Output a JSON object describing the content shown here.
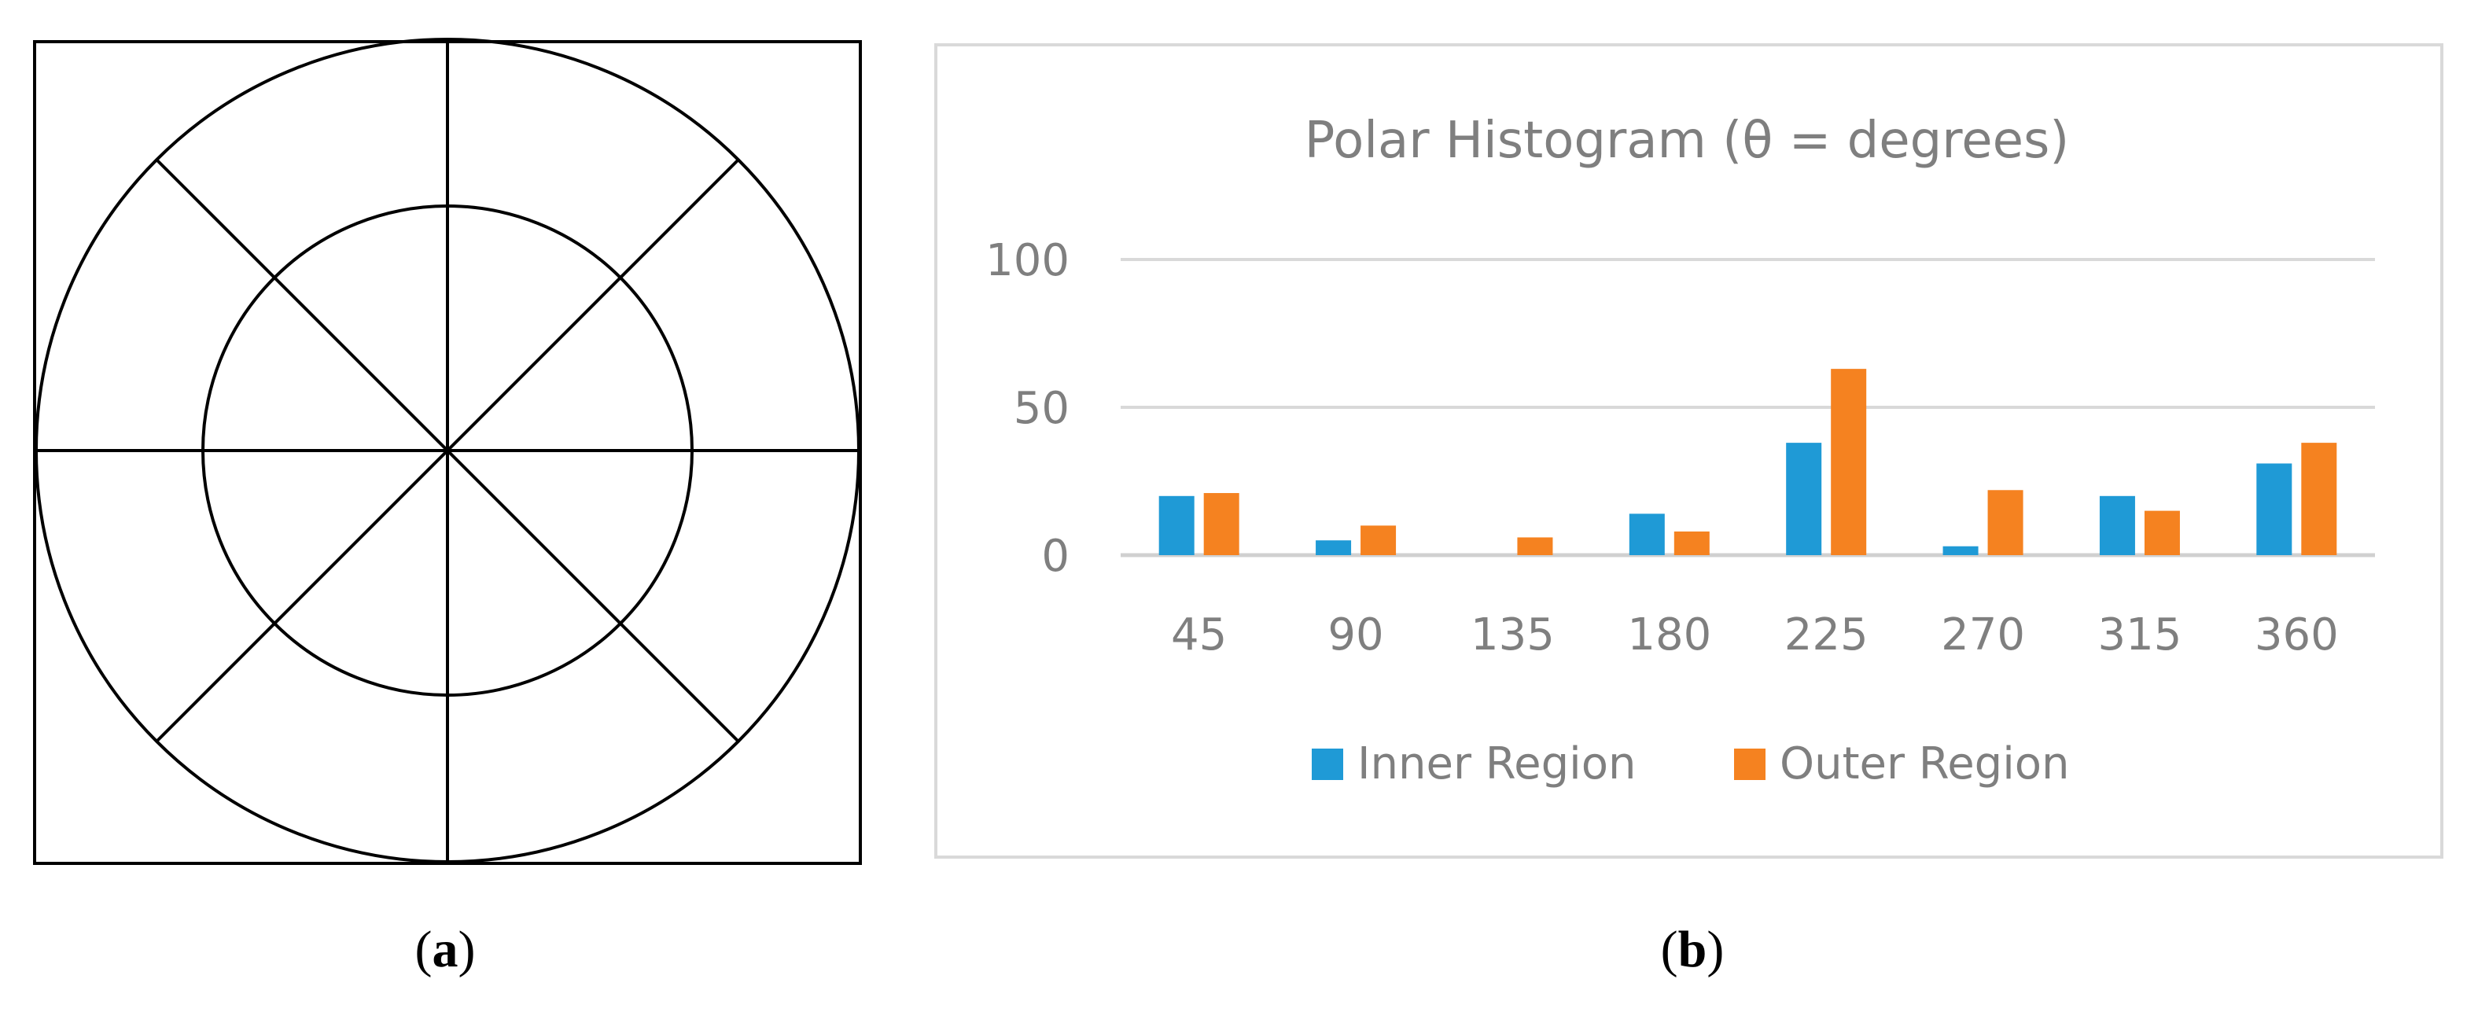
{
  "captions": {
    "a": "a",
    "b": "b"
  },
  "chart_data": {
    "type": "bar",
    "title": "Polar Histogram (θ = degrees)",
    "xlabel": "",
    "ylabel": "",
    "categories": [
      "45",
      "90",
      "135",
      "180",
      "225",
      "270",
      "315",
      "360"
    ],
    "series": [
      {
        "name": "Inner Region",
        "color": "#1f9ad6",
        "values": [
          20,
          5,
          0,
          14,
          38,
          3,
          20,
          31
        ]
      },
      {
        "name": "Outer Region",
        "color": "#f58220",
        "values": [
          21,
          10,
          6,
          8,
          63,
          22,
          15,
          38
        ]
      }
    ],
    "ylim": [
      0,
      100
    ],
    "yticks": [
      0,
      50,
      100
    ],
    "grid": true,
    "legend": "bottom"
  }
}
